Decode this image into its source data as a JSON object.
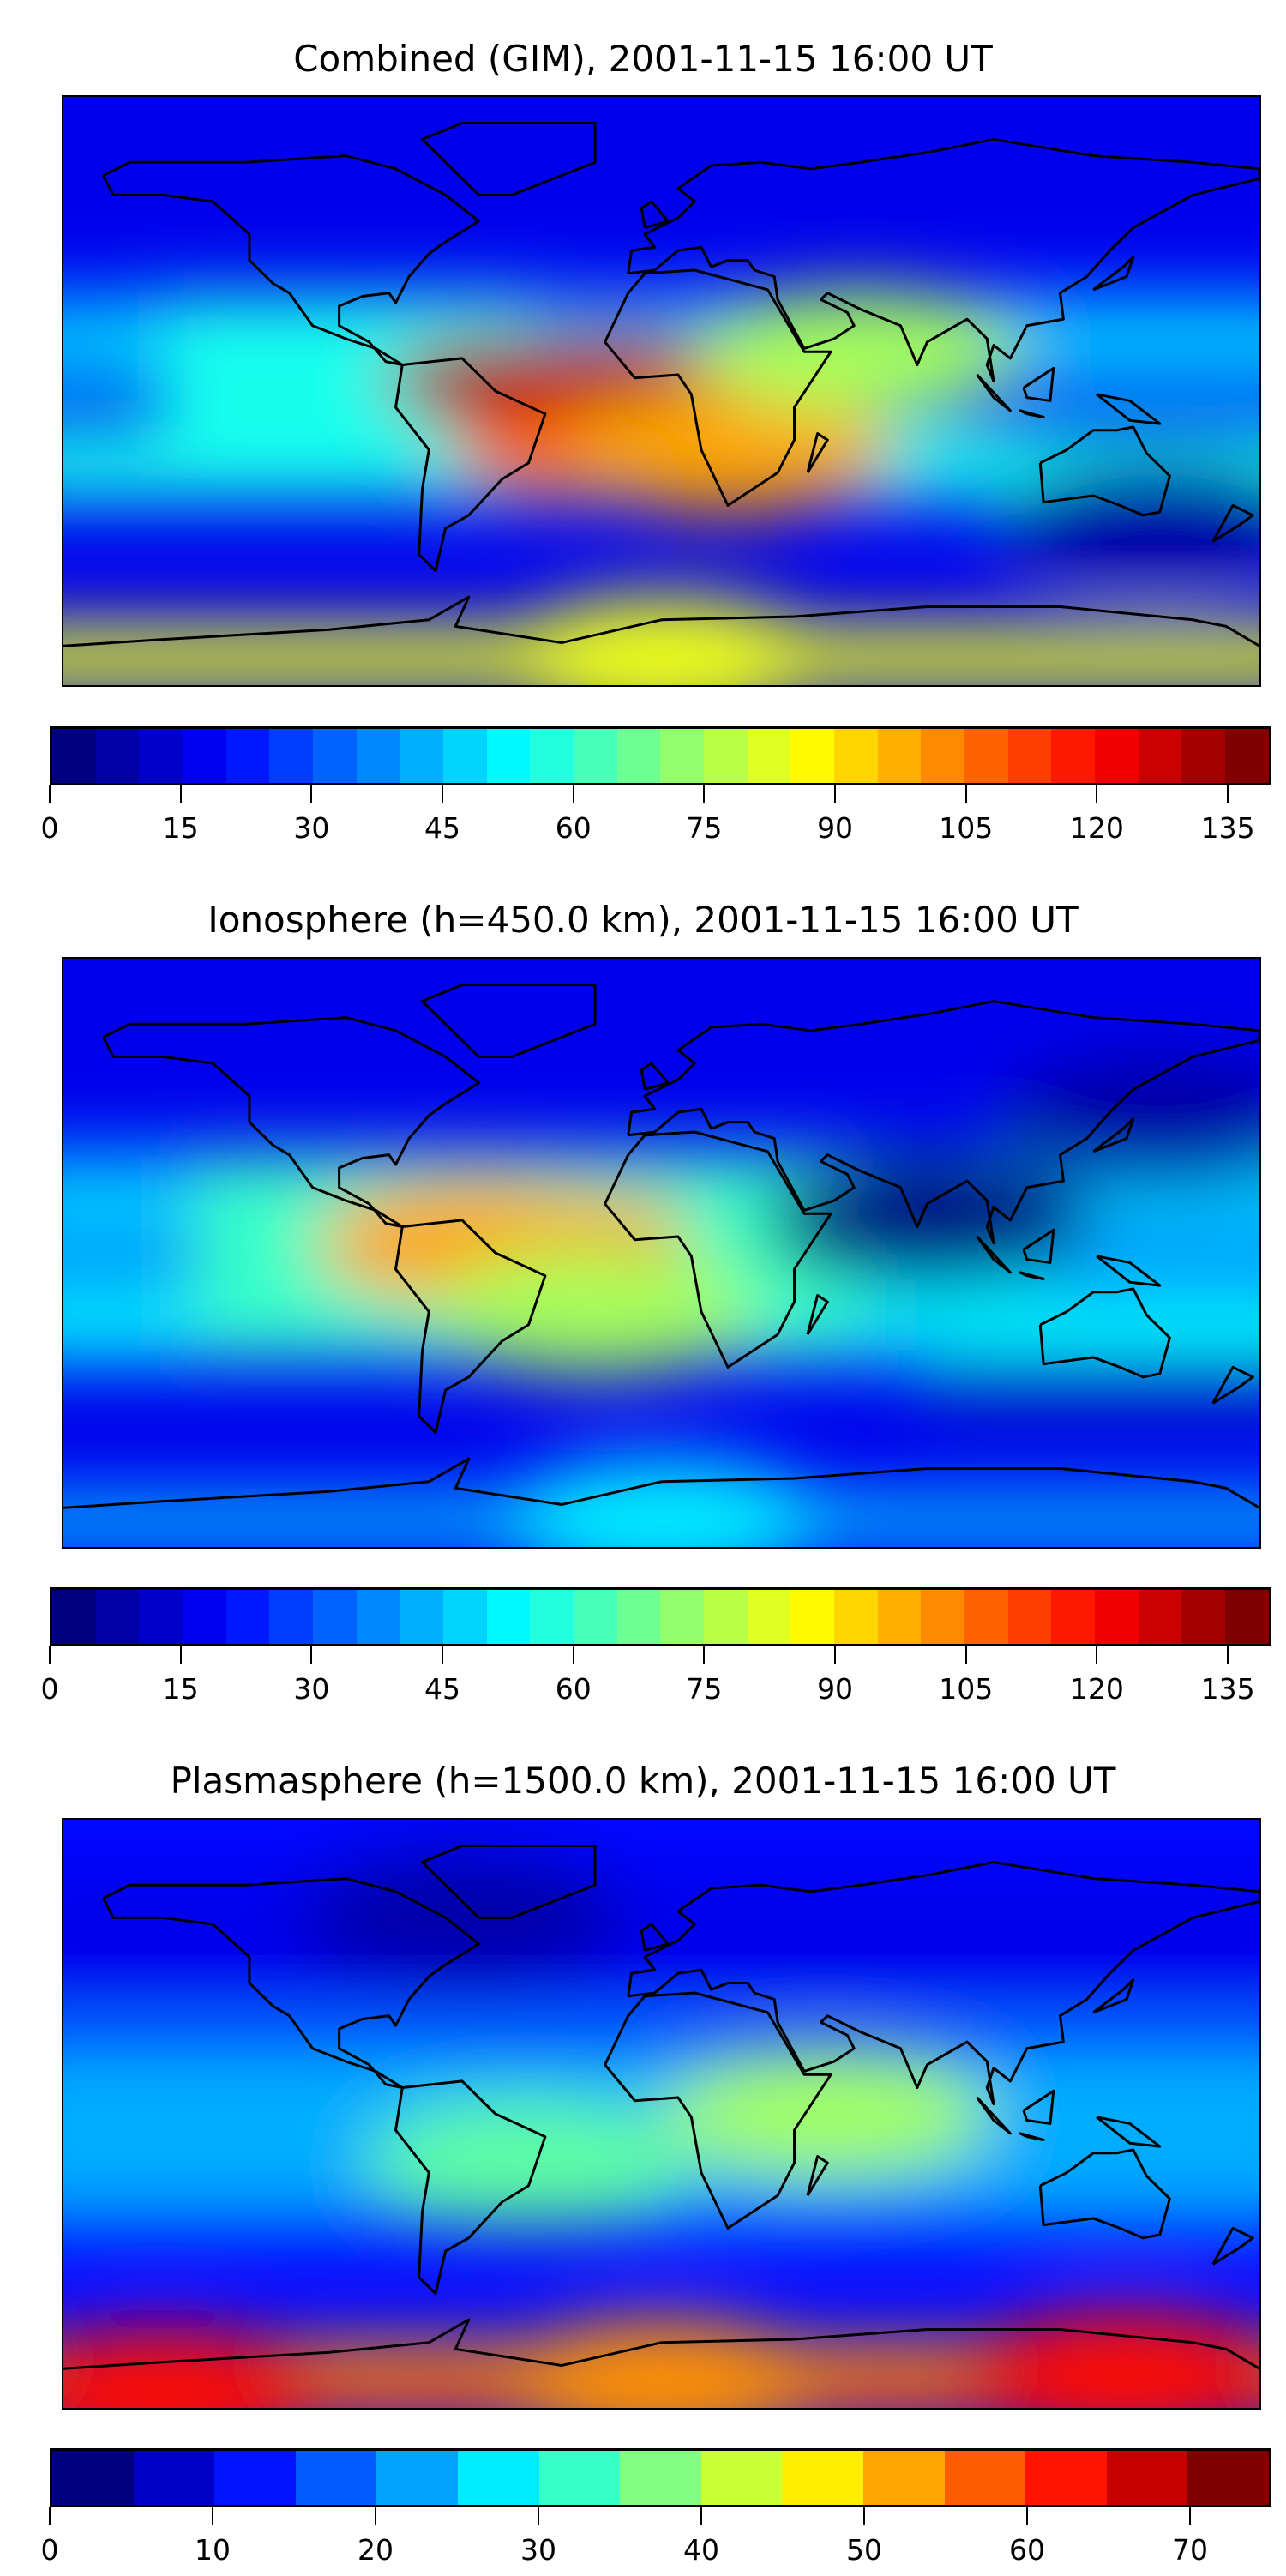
{
  "chart_data": [
    {
      "type": "heatmap",
      "subtype": "filled-contour-map",
      "title": "Combined (GIM), 2001-11-15 16:00 UT",
      "colormap": "jet",
      "levels": {
        "min": 0,
        "max": 140,
        "step": 5
      },
      "colorbar_ticks": [
        "0",
        "15",
        "30",
        "45",
        "60",
        "75",
        "90",
        "105",
        "120",
        "135"
      ],
      "colorbar_tick_values": [
        0,
        15,
        30,
        45,
        60,
        75,
        90,
        105,
        120,
        135
      ],
      "background_value": 15,
      "features": [
        {
          "lon": -45,
          "lat": 3,
          "value": 135
        },
        {
          "lon": -15,
          "lat": 4,
          "value": 135
        },
        {
          "lon": -25,
          "lat": -18,
          "value": 110
        },
        {
          "lon": 20,
          "lat": -18,
          "value": 100
        },
        {
          "lon": 60,
          "lat": 12,
          "value": 75
        },
        {
          "lon": 150,
          "lat": -40,
          "value": 5
        },
        {
          "lon": 0,
          "lat": -82,
          "value": 85
        }
      ]
    },
    {
      "type": "heatmap",
      "subtype": "filled-contour-map",
      "title": "Ionosphere  (h=450.0 km), 2001-11-15 16:00 UT",
      "colormap": "jet",
      "levels": {
        "min": 0,
        "max": 140,
        "step": 5
      },
      "colorbar_ticks": [
        "0",
        "15",
        "30",
        "45",
        "60",
        "75",
        "90",
        "105",
        "120",
        "135"
      ],
      "colorbar_tick_values": [
        0,
        15,
        30,
        45,
        60,
        75,
        90,
        105,
        120,
        135
      ],
      "background_value": 15,
      "features": [
        {
          "lon": -30,
          "lat": 5,
          "value": 105
        },
        {
          "lon": -55,
          "lat": 3,
          "value": 100
        },
        {
          "lon": -20,
          "lat": -18,
          "value": 75
        },
        {
          "lon": 80,
          "lat": 10,
          "value": 0
        },
        {
          "lon": 150,
          "lat": 40,
          "value": 5
        },
        {
          "lon": 0,
          "lat": -82,
          "value": 50
        }
      ]
    },
    {
      "type": "heatmap",
      "subtype": "filled-contour-map",
      "title": "Plasmasphere (h=1500.0 km), 2001-11-15 16:00 UT",
      "colormap": "jet",
      "levels": {
        "min": 0,
        "max": 75,
        "step": 5
      },
      "colorbar_ticks": [
        "0",
        "10",
        "20",
        "30",
        "40",
        "50",
        "60",
        "70"
      ],
      "colorbar_tick_values": [
        0,
        10,
        20,
        30,
        40,
        50,
        60,
        70
      ],
      "background_value": 10,
      "features": [
        {
          "lon": -40,
          "lat": -15,
          "value": 35
        },
        {
          "lon": 50,
          "lat": 0,
          "value": 40
        },
        {
          "lon": -60,
          "lat": 60,
          "value": 3
        },
        {
          "lon": 140,
          "lat": -80,
          "value": 65
        },
        {
          "lon": -150,
          "lat": -85,
          "value": 65
        },
        {
          "lon": 0,
          "lat": -82,
          "value": 55
        }
      ]
    }
  ]
}
